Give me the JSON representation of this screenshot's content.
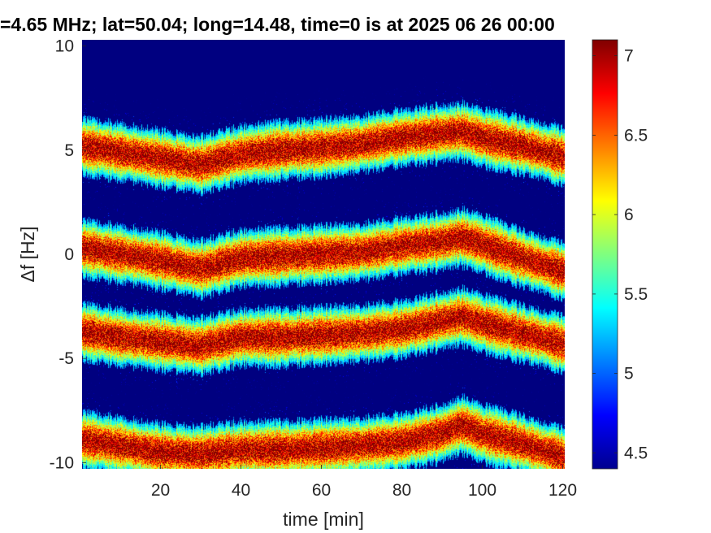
{
  "chart_data": {
    "type": "heatmap",
    "title": "=4.65 MHz;  lat=50.04; long=14.48, time=0 is at 2025 06 26 00:00",
    "xlabel": "time [min]",
    "ylabel": "Δf [Hz]",
    "xlim": [
      0.5,
      120.5
    ],
    "ylim": [
      -10.3,
      10.3
    ],
    "x_ticks": [
      "20",
      "40",
      "60",
      "80",
      "100",
      "120"
    ],
    "y_ticks": [
      "10",
      "5",
      "0",
      "-5",
      "-10"
    ],
    "colorbar": {
      "colormap": "jet",
      "range": [
        4.4,
        7.1
      ],
      "ticks": [
        "7",
        "6.5",
        "6",
        "5.5",
        "5",
        "4.5"
      ]
    },
    "background_color": "#00008f",
    "band_centers": {
      "x": [
        0,
        10,
        20,
        30,
        40,
        50,
        60,
        70,
        80,
        90,
        95,
        100,
        110,
        120
      ],
      "series": [
        {
          "values": [
            5.2,
            4.9,
            4.6,
            4.3,
            4.8,
            5.0,
            5.1,
            5.3,
            5.6,
            5.8,
            5.9,
            5.6,
            5.2,
            4.7
          ]
        },
        {
          "values": [
            0.3,
            0.0,
            -0.3,
            -0.7,
            -0.2,
            -0.1,
            0.0,
            0.1,
            0.4,
            0.6,
            0.8,
            0.5,
            -0.2,
            -0.8
          ]
        },
        {
          "values": [
            -3.7,
            -4.0,
            -4.2,
            -4.4,
            -4.0,
            -4.0,
            -3.9,
            -3.8,
            -3.6,
            -3.2,
            -3.0,
            -3.3,
            -3.8,
            -4.3
          ]
        },
        {
          "values": [
            -8.9,
            -9.2,
            -9.5,
            -9.6,
            -9.4,
            -9.4,
            -9.3,
            -9.2,
            -9.0,
            -8.6,
            -8.2,
            -8.6,
            -9.1,
            -9.7
          ]
        }
      ]
    }
  }
}
